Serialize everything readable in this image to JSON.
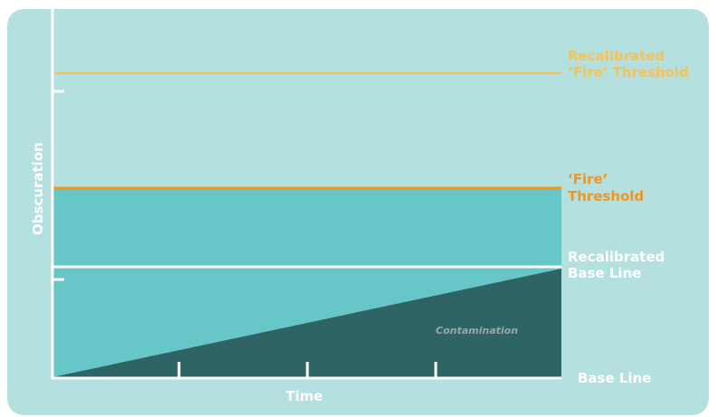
{
  "colors": {
    "panel_background": "#b4e0e0",
    "band_fill": "#66c6c8",
    "contamination_fill": "#2f6464",
    "axis_line": "#ffffff",
    "fire_threshold": "#f0961e",
    "recalibrated_fire_threshold": "#f5c15a",
    "base_line_label": "#ffffff",
    "contamination_label": "#9aa8a8"
  },
  "labels": {
    "recalibrated_fire_threshold_line1": "Recalibrated",
    "recalibrated_fire_threshold_line2": "‘Fire’ Threshold",
    "fire_threshold_line1": "‘Fire’",
    "fire_threshold_line2": "Threshold",
    "recalibrated_base_line_line1": "Recalibrated",
    "recalibrated_base_line_line2": "Base Line",
    "base_line": "Base Line",
    "contamination": "Contamination",
    "y_axis": "Obscuration",
    "x_axis": "Time"
  }
}
